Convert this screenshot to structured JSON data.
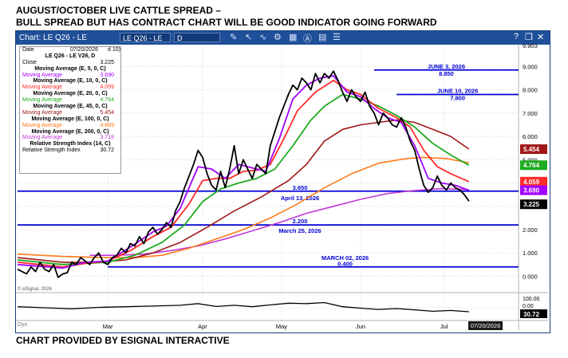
{
  "header": {
    "line1": "AUGUST/OCTOBER LIVE CATTLE SPREAD –",
    "line2": "BULL SPREAD BUT HAS CONTRACT CHART WILL BE GOOD INDICATOR GOING FORWARD"
  },
  "footer": "CHART PROVIDED BY ESIGNAL INTERACTIVE",
  "window": {
    "title": "Chart: LE Q26 - LE",
    "symbol": "LE Q26 - LE",
    "interval": "D",
    "toolbar_icons": [
      "pencil-icon",
      "cursor-icon",
      "wave-icon",
      "tool-icon",
      "calendar-icon",
      "letter-a-icon",
      "document-icon",
      "list-icon"
    ],
    "corner_icons": [
      "help-icon",
      "restore-icon",
      "close-icon"
    ]
  },
  "legend": {
    "date_label": "Date",
    "date_value": "07/20/2026",
    "date_suffix": "d 10)",
    "symbol_title": "LE Q26 - LE V26, D",
    "close_label": "Close",
    "close_value": "3.225",
    "studies": [
      {
        "title": "Moving Average (E, 5, 0, C)",
        "label": "Moving Average",
        "value": "3.690",
        "color": "#a100ff"
      },
      {
        "title": "Moving Average (E, 10, 0, C)",
        "label": "Moving Average",
        "value": "4.059",
        "color": "#ff2a2a"
      },
      {
        "title": "Moving Average (E, 20, 0, C)",
        "label": "Moving Average",
        "value": "4.764",
        "color": "#1faa1f"
      },
      {
        "title": "Moving Average (E, 45, 0, C)",
        "label": "Moving Average",
        "value": "5.454",
        "color": "#a01818"
      },
      {
        "title": "Moving Average (E, 100, 0, C)",
        "label": "Moving Average",
        "value": "4.869",
        "color": "#ff7a1a"
      },
      {
        "title": "Moving Average (E, 200, 0, C)",
        "label": "Moving Average",
        "value": "3.719",
        "color": "#c039d6"
      }
    ],
    "rsi_title": "Relative Strength Index (14, C)",
    "rsi_label": "Relative Strength Index",
    "rsi_value": "30.72"
  },
  "copyright": "© eSignal, 2026",
  "timestamp_box": "07/20/2026",
  "dyn_label": "Dyn",
  "chart_data": {
    "type": "line",
    "y_axis": {
      "ylim": [
        -0.6,
        9.903
      ],
      "ticks": [
        "9.903",
        "9.000",
        "8.000",
        "7.000",
        "6.000",
        "5.000",
        "4.000",
        "3.000",
        "2.000",
        "1.000",
        "0.000"
      ],
      "side": "right"
    },
    "x_axis": {
      "xlim": [
        0,
        111
      ],
      "ticks": [
        {
          "x": 20,
          "label": "Mar"
        },
        {
          "x": 41,
          "label": "Apr"
        },
        {
          "x": 58.5,
          "label": "May"
        },
        {
          "x": 76,
          "label": "Jun"
        },
        {
          "x": 94.5,
          "label": "Jul"
        }
      ]
    },
    "grid": true,
    "horizontal_lines": [
      {
        "value": 8.85,
        "label": "8.850",
        "date_label": "JUNE 3, 2026",
        "x_start": 79
      },
      {
        "value": 7.8,
        "label": "7.800",
        "date_label": "JUNE 10, 2026",
        "x_start": 84
      },
      {
        "value": 3.65,
        "label": "3.650",
        "date_label": "April 13, 2026",
        "x_start": 0
      },
      {
        "value": 2.2,
        "label": "2.200",
        "date_label": "March 25, 2026",
        "x_start": 0
      },
      {
        "value": 0.4,
        "label": "0.400",
        "date_label": "MARCH 02, 2026",
        "x_start": 20
      }
    ],
    "value_flags": [
      {
        "value": 5.454,
        "label": "5.454",
        "color": "#a01818"
      },
      {
        "value": 4.764,
        "label": "4.764",
        "color": "#1faa1f"
      },
      {
        "value": 4.059,
        "label": "4.059",
        "color": "#ff2a2a"
      },
      {
        "value": 3.69,
        "label": "3.690",
        "color": "#a100ff"
      },
      {
        "value": 3.225,
        "label": "3.225",
        "color": "#000000"
      }
    ],
    "series": [
      {
        "name": "LE Q26 - LE V26",
        "color": "#000000",
        "width": 1.8,
        "points": [
          [
            0,
            0.3
          ],
          [
            2,
            0.1
          ],
          [
            3,
            0.4
          ],
          [
            4,
            0.2
          ],
          [
            5,
            0.6
          ],
          [
            6,
            0.3
          ],
          [
            7,
            0.2
          ],
          [
            8,
            0.5
          ],
          [
            9,
            -0.05
          ],
          [
            10,
            0.1
          ],
          [
            11,
            0.15
          ],
          [
            12,
            0.6
          ],
          [
            13,
            0.5
          ],
          [
            14,
            0.8
          ],
          [
            15,
            0.65
          ],
          [
            16,
            0.5
          ],
          [
            17,
            0.8
          ],
          [
            18,
            1.0
          ],
          [
            19,
            0.6
          ],
          [
            20,
            0.5
          ],
          [
            21,
            0.8
          ],
          [
            22,
            0.9
          ],
          [
            23,
            1.2
          ],
          [
            24,
            1.0
          ],
          [
            25,
            1.4
          ],
          [
            26,
            1.3
          ],
          [
            27,
            1.7
          ],
          [
            28,
            1.4
          ],
          [
            29,
            1.9
          ],
          [
            30,
            2.1
          ],
          [
            31,
            1.8
          ],
          [
            32,
            2.0
          ],
          [
            33,
            2.3
          ],
          [
            34,
            2.1
          ],
          [
            35,
            2.8
          ],
          [
            36,
            3.2
          ],
          [
            37,
            3.8
          ],
          [
            38,
            4.3
          ],
          [
            39,
            4.8
          ],
          [
            40,
            5.4
          ],
          [
            41,
            5.1
          ],
          [
            42,
            4.4
          ],
          [
            43,
            3.9
          ],
          [
            44,
            3.7
          ],
          [
            45,
            4.5
          ],
          [
            46,
            3.8
          ],
          [
            47,
            4.6
          ],
          [
            48,
            5.6
          ],
          [
            49,
            4.4
          ],
          [
            50,
            5.0
          ],
          [
            51,
            4.6
          ],
          [
            52,
            4.2
          ],
          [
            53,
            4.8
          ],
          [
            54,
            4.6
          ],
          [
            55,
            4.4
          ],
          [
            56,
            5.6
          ],
          [
            57,
            6.2
          ],
          [
            58,
            6.8
          ],
          [
            59,
            7.3
          ],
          [
            60,
            7.8
          ],
          [
            61,
            8.2
          ],
          [
            62,
            8.0
          ],
          [
            63,
            8.5
          ],
          [
            64,
            8.3
          ],
          [
            65,
            8.0
          ],
          [
            66,
            8.7
          ],
          [
            67,
            8.3
          ],
          [
            68,
            8.7
          ],
          [
            69,
            8.5
          ],
          [
            70,
            8.8
          ],
          [
            71,
            8.4
          ],
          [
            72,
            7.9
          ],
          [
            73,
            7.5
          ],
          [
            74,
            8.0
          ],
          [
            75,
            7.7
          ],
          [
            76,
            7.5
          ],
          [
            77,
            7.9
          ],
          [
            78,
            7.3
          ],
          [
            79,
            7.0
          ],
          [
            80,
            6.5
          ],
          [
            81,
            7.0
          ],
          [
            82,
            6.8
          ],
          [
            83,
            6.5
          ],
          [
            84,
            6.4
          ],
          [
            85,
            6.8
          ],
          [
            86,
            6.4
          ],
          [
            87,
            5.8
          ],
          [
            88,
            5.4
          ],
          [
            89,
            4.6
          ],
          [
            90,
            3.9
          ],
          [
            91,
            3.6
          ],
          [
            92,
            3.8
          ],
          [
            93,
            4.3
          ],
          [
            94,
            3.9
          ],
          [
            95,
            3.7
          ],
          [
            96,
            4.0
          ],
          [
            97,
            3.8
          ],
          [
            98,
            3.7
          ],
          [
            99,
            3.5
          ],
          [
            100,
            3.225
          ]
        ]
      },
      {
        "name": "Moving Average (E, 5, 0, C)",
        "color": "#a100ff",
        "width": 1.8,
        "points": [
          [
            0,
            0.5
          ],
          [
            10,
            0.35
          ],
          [
            15,
            0.6
          ],
          [
            20,
            0.65
          ],
          [
            25,
            1.25
          ],
          [
            30,
            1.9
          ],
          [
            33,
            2.15
          ],
          [
            36,
            2.9
          ],
          [
            40,
            4.7
          ],
          [
            43,
            4.6
          ],
          [
            46,
            4.2
          ],
          [
            49,
            4.8
          ],
          [
            53,
            4.6
          ],
          [
            55,
            4.5
          ],
          [
            58,
            5.9
          ],
          [
            61,
            7.6
          ],
          [
            64,
            8.2
          ],
          [
            67,
            8.5
          ],
          [
            70,
            8.6
          ],
          [
            73,
            7.9
          ],
          [
            76,
            7.7
          ],
          [
            79,
            7.2
          ],
          [
            82,
            6.8
          ],
          [
            85,
            6.6
          ],
          [
            88,
            5.6
          ],
          [
            91,
            4.2
          ],
          [
            94,
            4.0
          ],
          [
            97,
            3.9
          ],
          [
            100,
            3.69
          ]
        ]
      },
      {
        "name": "Moving Average (E, 10, 0, C)",
        "color": "#ff2a2a",
        "width": 1.8,
        "points": [
          [
            0,
            0.6
          ],
          [
            10,
            0.4
          ],
          [
            15,
            0.55
          ],
          [
            20,
            0.65
          ],
          [
            25,
            1.1
          ],
          [
            30,
            1.7
          ],
          [
            34,
            2.1
          ],
          [
            38,
            3.1
          ],
          [
            41,
            4.1
          ],
          [
            44,
            4.2
          ],
          [
            47,
            4.2
          ],
          [
            50,
            4.5
          ],
          [
            53,
            4.55
          ],
          [
            56,
            4.8
          ],
          [
            59,
            5.9
          ],
          [
            62,
            7.1
          ],
          [
            66,
            7.9
          ],
          [
            70,
            8.4
          ],
          [
            73,
            8.0
          ],
          [
            76,
            7.8
          ],
          [
            80,
            7.2
          ],
          [
            84,
            6.8
          ],
          [
            87,
            6.4
          ],
          [
            90,
            5.4
          ],
          [
            93,
            4.7
          ],
          [
            96,
            4.4
          ],
          [
            100,
            4.059
          ]
        ]
      },
      {
        "name": "Moving Average (E, 20, 0, C)",
        "color": "#1faa1f",
        "width": 1.8,
        "points": [
          [
            0,
            0.7
          ],
          [
            10,
            0.5
          ],
          [
            20,
            0.6
          ],
          [
            26,
            0.9
          ],
          [
            32,
            1.45
          ],
          [
            37,
            2.2
          ],
          [
            41,
            3.2
          ],
          [
            45,
            3.75
          ],
          [
            49,
            4.0
          ],
          [
            53,
            4.2
          ],
          [
            57,
            4.6
          ],
          [
            61,
            5.6
          ],
          [
            65,
            6.7
          ],
          [
            68,
            7.3
          ],
          [
            72,
            7.8
          ],
          [
            76,
            7.6
          ],
          [
            80,
            7.3
          ],
          [
            84,
            6.9
          ],
          [
            88,
            6.4
          ],
          [
            92,
            5.7
          ],
          [
            96,
            5.2
          ],
          [
            100,
            4.764
          ]
        ]
      },
      {
        "name": "Moving Average (E, 45, 0, C)",
        "color": "#a01818",
        "width": 1.6,
        "points": [
          [
            0,
            0.8
          ],
          [
            10,
            0.6
          ],
          [
            18,
            0.6
          ],
          [
            24,
            0.7
          ],
          [
            30,
            1.0
          ],
          [
            36,
            1.45
          ],
          [
            42,
            2.1
          ],
          [
            48,
            2.8
          ],
          [
            54,
            3.4
          ],
          [
            60,
            4.1
          ],
          [
            64,
            4.8
          ],
          [
            68,
            5.8
          ],
          [
            72,
            6.3
          ],
          [
            76,
            6.5
          ],
          [
            80,
            6.6
          ],
          [
            84,
            6.7
          ],
          [
            88,
            6.6
          ],
          [
            92,
            6.3
          ],
          [
            96,
            6.0
          ],
          [
            100,
            5.454
          ]
        ]
      },
      {
        "name": "Moving Average (E, 100, 0, C)",
        "color": "#ff7a1a",
        "width": 1.6,
        "points": [
          [
            0,
            0.95
          ],
          [
            10,
            0.85
          ],
          [
            20,
            0.8
          ],
          [
            26,
            0.8
          ],
          [
            32,
            0.9
          ],
          [
            38,
            1.2
          ],
          [
            44,
            1.6
          ],
          [
            50,
            2.0
          ],
          [
            56,
            2.5
          ],
          [
            62,
            3.1
          ],
          [
            68,
            3.8
          ],
          [
            74,
            4.4
          ],
          [
            80,
            4.85
          ],
          [
            86,
            5.05
          ],
          [
            90,
            5.1
          ],
          [
            95,
            5.05
          ],
          [
            100,
            4.869
          ]
        ]
      },
      {
        "name": "Moving Average (E, 200, 0, C)",
        "color": "#c039d6",
        "width": 1.6,
        "points": [
          [
            16,
            0.9
          ],
          [
            22,
            0.9
          ],
          [
            28,
            0.95
          ],
          [
            34,
            1.1
          ],
          [
            40,
            1.3
          ],
          [
            46,
            1.6
          ],
          [
            52,
            1.95
          ],
          [
            58,
            2.3
          ],
          [
            64,
            2.7
          ],
          [
            70,
            3.0
          ],
          [
            76,
            3.3
          ],
          [
            82,
            3.55
          ],
          [
            88,
            3.68
          ],
          [
            94,
            3.76
          ],
          [
            100,
            3.719
          ]
        ]
      }
    ],
    "rsi": {
      "ylim": [
        0,
        100
      ],
      "ticks": [
        "100.00",
        "0.00"
      ],
      "current_label": "30.72",
      "points": [
        [
          0,
          55
        ],
        [
          6,
          50
        ],
        [
          12,
          45
        ],
        [
          18,
          52
        ],
        [
          24,
          55
        ],
        [
          30,
          58
        ],
        [
          36,
          62
        ],
        [
          40,
          70
        ],
        [
          44,
          56
        ],
        [
          48,
          62
        ],
        [
          52,
          55
        ],
        [
          56,
          64
        ],
        [
          60,
          72
        ],
        [
          64,
          70
        ],
        [
          68,
          75
        ],
        [
          72,
          55
        ],
        [
          76,
          48
        ],
        [
          80,
          42
        ],
        [
          84,
          46
        ],
        [
          88,
          40
        ],
        [
          92,
          33
        ],
        [
          96,
          37
        ],
        [
          100,
          30.72
        ]
      ]
    }
  }
}
